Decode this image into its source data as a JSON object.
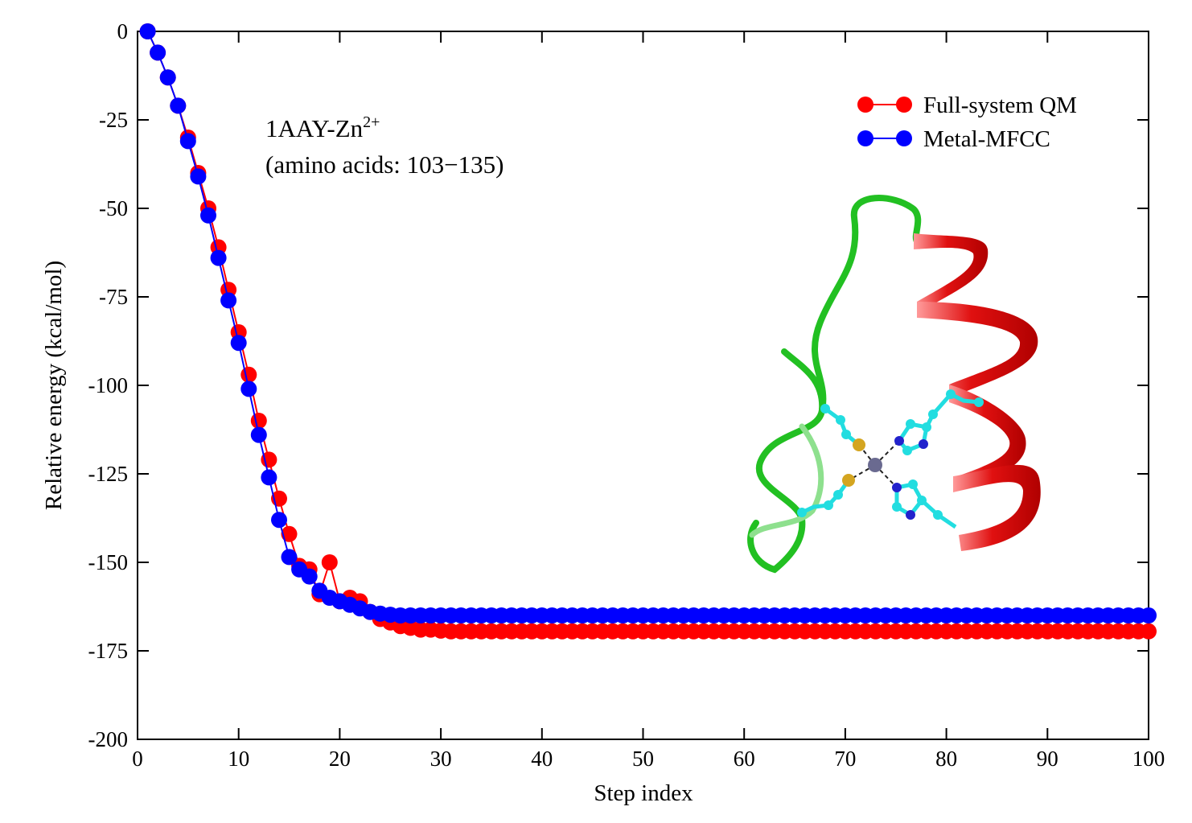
{
  "chart_data": {
    "type": "line",
    "title": "",
    "xlabel": "Step index",
    "ylabel": "Relative energy (kcal/mol)",
    "xlim": [
      0,
      100
    ],
    "ylim": [
      -200,
      0
    ],
    "xticks": [
      0,
      10,
      20,
      30,
      40,
      50,
      60,
      70,
      80,
      90,
      100
    ],
    "yticks": [
      0,
      -25,
      -50,
      -75,
      -100,
      -125,
      -150,
      -175,
      -200
    ],
    "xtick_labels": [
      "0",
      "10",
      "20",
      "30",
      "40",
      "50",
      "60",
      "70",
      "80",
      "90",
      "100"
    ],
    "ytick_labels": [
      "0",
      "-25",
      "-50",
      "-75",
      "-100",
      "-125",
      "-150",
      "-175",
      "-200"
    ],
    "grid": false,
    "legend_position": "top-right",
    "annotation": {
      "line1_main": "1AAY-Zn",
      "line1_sup": "2+",
      "line2": "(amino acids: 103−135)"
    },
    "x": [
      1,
      2,
      3,
      4,
      5,
      6,
      7,
      8,
      9,
      10,
      11,
      12,
      13,
      14,
      15,
      16,
      17,
      18,
      19,
      20,
      21,
      22,
      23,
      24,
      25,
      26,
      27,
      28,
      29,
      30,
      31,
      32,
      33,
      34,
      35,
      36,
      37,
      38,
      39,
      40,
      41,
      42,
      43,
      44,
      45,
      46,
      47,
      48,
      49,
      50,
      51,
      52,
      53,
      54,
      55,
      56,
      57,
      58,
      59,
      60,
      61,
      62,
      63,
      64,
      65,
      66,
      67,
      68,
      69,
      70,
      71,
      72,
      73,
      74,
      75,
      76,
      77,
      78,
      79,
      80,
      81,
      82,
      83,
      84,
      85,
      86,
      87,
      88,
      89,
      90,
      91,
      92,
      93,
      94,
      95,
      96,
      97,
      98,
      99,
      100
    ],
    "series": [
      {
        "name": "Full-system QM",
        "color": "#ff0000",
        "values": [
          0,
          -6,
          -13,
          -21,
          -30,
          -40,
          -50,
          -61,
          -73,
          -85,
          -97,
          -110,
          -121,
          -132,
          -142,
          -151,
          -152,
          -159,
          -150,
          -161,
          -160,
          -161,
          -164,
          -166,
          -167,
          -168,
          -168.5,
          -169,
          -169,
          -169.3,
          -169.5,
          -169.5,
          -169.5,
          -169.5,
          -169.5,
          -169.5,
          -169.5,
          -169.5,
          -169.5,
          -169.5,
          -169.5,
          -169.5,
          -169.5,
          -169.5,
          -169.5,
          -169.5,
          -169.5,
          -169.5,
          -169.5,
          -169.5,
          -169.5,
          -169.5,
          -169.5,
          -169.5,
          -169.5,
          -169.5,
          -169.5,
          -169.5,
          -169.5,
          -169.5,
          -169.5,
          -169.5,
          -169.5,
          -169.5,
          -169.5,
          -169.5,
          -169.5,
          -169.5,
          -169.5,
          -169.5,
          -169.5,
          -169.5,
          -169.5,
          -169.5,
          -169.5,
          -169.5,
          -169.5,
          -169.5,
          -169.5,
          -169.5,
          -169.5,
          -169.5,
          -169.5,
          -169.5,
          -169.5,
          -169.5,
          -169.5,
          -169.5,
          -169.5,
          -169.5,
          -169.5,
          -169.5,
          -169.5,
          -169.5,
          -169.5,
          -169.5,
          -169.5,
          -169.5,
          -169.5,
          -169.5
        ]
      },
      {
        "name": "Metal-MFCC",
        "color": "#0000ff",
        "values": [
          0,
          -6,
          -13,
          -21,
          -31,
          -41,
          -52,
          -64,
          -76,
          -88,
          -101,
          -114,
          -126,
          -138,
          -148.5,
          -152,
          -154,
          -158,
          -160,
          -161,
          -162,
          -163,
          -164,
          -164.5,
          -164.8,
          -165,
          -165,
          -165,
          -165,
          -165,
          -165,
          -165,
          -165,
          -165,
          -165,
          -165,
          -165,
          -165,
          -165,
          -165,
          -165,
          -165,
          -165,
          -165,
          -165,
          -165,
          -165,
          -165,
          -165,
          -165,
          -165,
          -165,
          -165,
          -165,
          -165,
          -165,
          -165,
          -165,
          -165,
          -165,
          -165,
          -165,
          -165,
          -165,
          -165,
          -165,
          -165,
          -165,
          -165,
          -165,
          -165,
          -165,
          -165,
          -165,
          -165,
          -165,
          -165,
          -165,
          -165,
          -165,
          -165,
          -165,
          -165,
          -165,
          -165,
          -165,
          -165,
          -165,
          -165,
          -165,
          -165,
          -165,
          -165,
          -165,
          -165,
          -165,
          -165,
          -165,
          -165,
          -165
        ]
      }
    ],
    "inset_graphic": "protein-ribbon-zinc-site",
    "colors": {
      "helix": "#e01010",
      "loop": "#22c022",
      "ligand_carbon": "#22dde0",
      "sulfur": "#d4a520",
      "nitrogen": "#2222cc",
      "zinc": "#6a6a90"
    }
  }
}
